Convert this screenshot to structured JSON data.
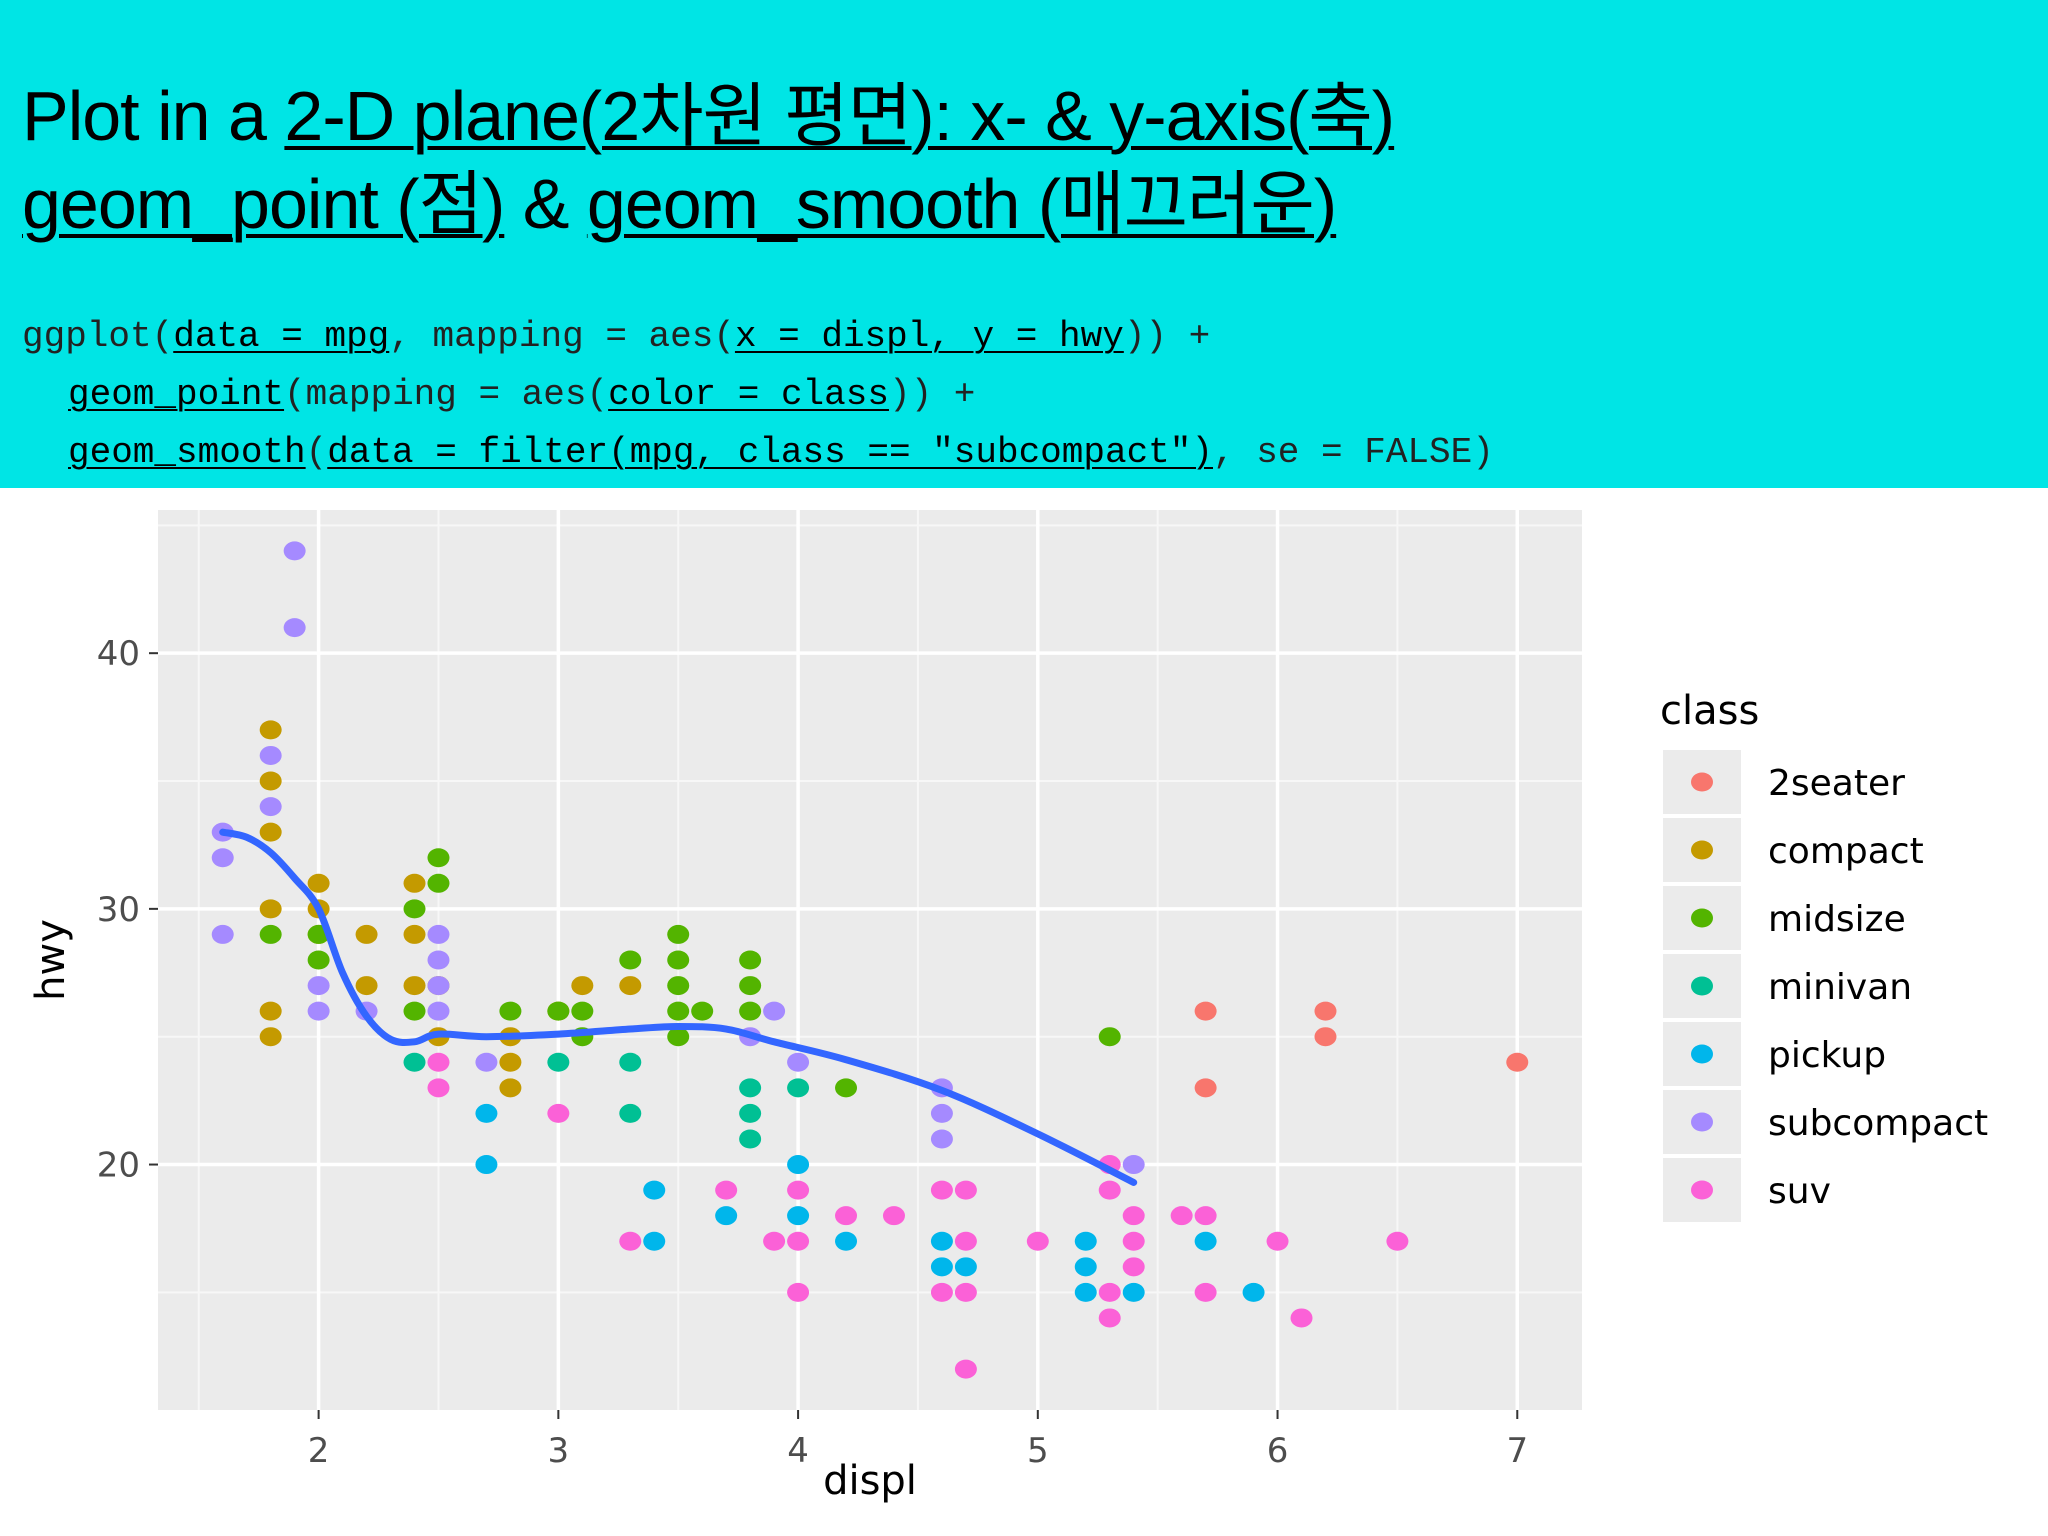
{
  "slide": {
    "title_line1": {
      "prefix": "Plot in a ",
      "underlined": "2-D plane(2차원 평면): x- & y-axis(축)"
    },
    "title_line2": {
      "part1": "geom_point (점)",
      "middle": " & ",
      "part2": "geom_smooth (매끄러운)"
    },
    "code": {
      "line1": [
        {
          "t": "ggplot(",
          "u": false
        },
        {
          "t": "data = mpg",
          "u": true
        },
        {
          "t": ", mapping = aes(",
          "u": false
        },
        {
          "t": "x = displ, y = hwy",
          "u": true
        },
        {
          "t": ")) +",
          "u": false
        }
      ],
      "line2": [
        {
          "t": "geom_point",
          "u": true
        },
        {
          "t": "(mapping = aes(",
          "u": false
        },
        {
          "t": "color = class",
          "u": true
        },
        {
          "t": ")) +",
          "u": false
        }
      ],
      "line3": [
        {
          "t": "geom_smooth",
          "u": true
        },
        {
          "t": "(",
          "u": false
        },
        {
          "t": "data = filter(mpg, class == \"subcompact\")",
          "u": true
        },
        {
          "t": ", se = FALSE)",
          "u": false
        }
      ]
    }
  },
  "chart_data": {
    "type": "scatter",
    "xlabel": "displ",
    "ylabel": "hwy",
    "xlim": [
      1.33,
      7.27
    ],
    "ylim": [
      10.4,
      45.6
    ],
    "x_ticks": [
      2,
      3,
      4,
      5,
      6,
      7
    ],
    "y_ticks": [
      20,
      30,
      40
    ],
    "grid": true,
    "legend_title": "class",
    "legend_position": "right",
    "colors": {
      "2seater": "#f8766d",
      "compact": "#c49a00",
      "midsize": "#53b400",
      "minivan": "#00c094",
      "pickup": "#00b6eb",
      "subcompact": "#a58aff",
      "suv": "#fb61d7"
    },
    "series": [
      {
        "name": "2seater",
        "points": [
          [
            5.7,
            26
          ],
          [
            5.7,
            23
          ],
          [
            6.2,
            26
          ],
          [
            6.2,
            25
          ],
          [
            7.0,
            24
          ]
        ]
      },
      {
        "name": "compact",
        "points": [
          [
            1.8,
            37
          ],
          [
            1.8,
            35
          ],
          [
            1.8,
            33
          ],
          [
            1.8,
            30
          ],
          [
            1.8,
            26
          ],
          [
            1.8,
            25
          ],
          [
            2.0,
            31
          ],
          [
            2.0,
            30
          ],
          [
            2.0,
            29
          ],
          [
            2.2,
            29
          ],
          [
            2.2,
            27
          ],
          [
            2.4,
            31
          ],
          [
            2.4,
            29
          ],
          [
            2.4,
            27
          ],
          [
            2.5,
            27
          ],
          [
            2.5,
            25
          ],
          [
            2.8,
            25
          ],
          [
            2.8,
            24
          ],
          [
            2.8,
            23
          ],
          [
            3.0,
            26
          ],
          [
            3.1,
            27
          ],
          [
            3.3,
            27
          ]
        ]
      },
      {
        "name": "midsize",
        "points": [
          [
            1.8,
            29
          ],
          [
            2.0,
            29
          ],
          [
            2.0,
            28
          ],
          [
            2.4,
            30
          ],
          [
            2.4,
            26
          ],
          [
            2.5,
            32
          ],
          [
            2.5,
            31
          ],
          [
            2.8,
            26
          ],
          [
            3.0,
            26
          ],
          [
            3.1,
            26
          ],
          [
            3.1,
            25
          ],
          [
            3.3,
            28
          ],
          [
            3.5,
            29
          ],
          [
            3.5,
            28
          ],
          [
            3.5,
            27
          ],
          [
            3.5,
            26
          ],
          [
            3.5,
            25
          ],
          [
            3.6,
            26
          ],
          [
            3.8,
            28
          ],
          [
            3.8,
            27
          ],
          [
            3.8,
            26
          ],
          [
            4.2,
            23
          ],
          [
            5.3,
            25
          ]
        ]
      },
      {
        "name": "minivan",
        "points": [
          [
            2.4,
            24
          ],
          [
            3.0,
            24
          ],
          [
            3.3,
            24
          ],
          [
            3.3,
            22
          ],
          [
            3.8,
            23
          ],
          [
            3.8,
            22
          ],
          [
            3.8,
            21
          ],
          [
            4.0,
            23
          ]
        ]
      },
      {
        "name": "pickup",
        "points": [
          [
            2.7,
            22
          ],
          [
            2.7,
            20
          ],
          [
            3.4,
            19
          ],
          [
            3.4,
            17
          ],
          [
            3.7,
            18
          ],
          [
            4.0,
            20
          ],
          [
            4.0,
            18
          ],
          [
            4.2,
            17
          ],
          [
            4.6,
            17
          ],
          [
            4.6,
            16
          ],
          [
            4.7,
            16
          ],
          [
            5.2,
            17
          ],
          [
            5.2,
            16
          ],
          [
            5.2,
            15
          ],
          [
            5.4,
            15
          ],
          [
            5.7,
            17
          ],
          [
            5.9,
            15
          ]
        ]
      },
      {
        "name": "subcompact",
        "points": [
          [
            1.6,
            33
          ],
          [
            1.6,
            32
          ],
          [
            1.6,
            29
          ],
          [
            1.8,
            36
          ],
          [
            1.8,
            34
          ],
          [
            1.9,
            44
          ],
          [
            1.9,
            41
          ],
          [
            2.0,
            27
          ],
          [
            2.0,
            26
          ],
          [
            2.2,
            26
          ],
          [
            2.5,
            29
          ],
          [
            2.5,
            28
          ],
          [
            2.5,
            27
          ],
          [
            2.5,
            26
          ],
          [
            2.7,
            24
          ],
          [
            3.8,
            25
          ],
          [
            3.9,
            26
          ],
          [
            4.0,
            24
          ],
          [
            4.6,
            23
          ],
          [
            4.6,
            22
          ],
          [
            4.6,
            21
          ],
          [
            5.4,
            20
          ]
        ]
      },
      {
        "name": "suv",
        "points": [
          [
            2.5,
            24
          ],
          [
            2.5,
            23
          ],
          [
            3.0,
            22
          ],
          [
            3.3,
            17
          ],
          [
            3.7,
            19
          ],
          [
            3.9,
            17
          ],
          [
            4.0,
            19
          ],
          [
            4.0,
            17
          ],
          [
            4.0,
            15
          ],
          [
            4.2,
            18
          ],
          [
            4.4,
            18
          ],
          [
            4.6,
            19
          ],
          [
            4.6,
            15
          ],
          [
            4.7,
            19
          ],
          [
            4.7,
            17
          ],
          [
            4.7,
            15
          ],
          [
            4.7,
            12
          ],
          [
            5.0,
            17
          ],
          [
            5.3,
            20
          ],
          [
            5.3,
            19
          ],
          [
            5.3,
            15
          ],
          [
            5.3,
            14
          ],
          [
            5.4,
            18
          ],
          [
            5.4,
            17
          ],
          [
            5.4,
            16
          ],
          [
            5.6,
            18
          ],
          [
            5.7,
            18
          ],
          [
            5.7,
            15
          ],
          [
            6.0,
            17
          ],
          [
            6.1,
            14
          ],
          [
            6.5,
            17
          ]
        ]
      }
    ],
    "smooth": {
      "name": "geom_smooth (subcompact)",
      "color": "#3366ff",
      "points": [
        [
          1.6,
          33
        ],
        [
          1.7,
          32.8
        ],
        [
          1.8,
          32.2
        ],
        [
          1.9,
          31.2
        ],
        [
          2.0,
          30
        ],
        [
          2.1,
          27.5
        ],
        [
          2.2,
          25.8
        ],
        [
          2.3,
          24.9
        ],
        [
          2.4,
          24.8
        ],
        [
          2.5,
          25.1
        ],
        [
          2.7,
          25
        ],
        [
          3.0,
          25.1
        ],
        [
          3.3,
          25.3
        ],
        [
          3.5,
          25.4
        ],
        [
          3.7,
          25.3
        ],
        [
          3.9,
          24.8
        ],
        [
          4.2,
          24.1
        ],
        [
          4.6,
          22.9
        ],
        [
          5.0,
          21.2
        ],
        [
          5.4,
          19.3
        ]
      ]
    }
  }
}
